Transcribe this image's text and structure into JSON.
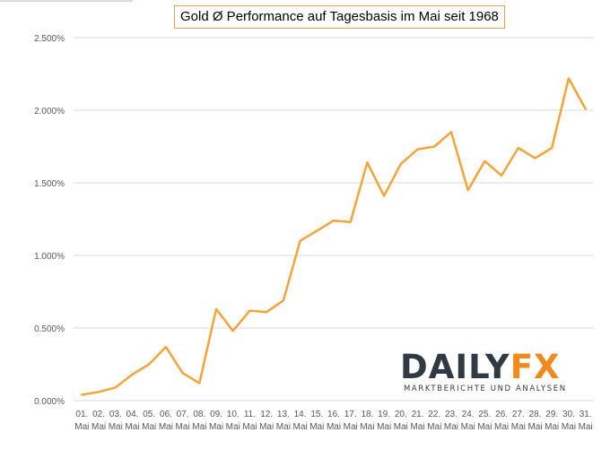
{
  "chart_data": {
    "type": "line",
    "title": "Gold Ø Performance auf Tagesbasis im Mai seit 1968",
    "xlabel": "",
    "ylabel": "",
    "categories": [
      "01. Mai",
      "02. Mai",
      "03. Mai",
      "04. Mai",
      "05. Mai",
      "06. Mai",
      "07. Mai",
      "08. Mai",
      "09. Mai",
      "10. Mai",
      "11. Mai",
      "12. Mai",
      "13. Mai",
      "14. Mai",
      "15. Mai",
      "16. Mai",
      "17. Mai",
      "18. Mai",
      "19. Mai",
      "20. Mai",
      "21. Mai",
      "22. Mai",
      "23. Mai",
      "24. Mai",
      "25. Mai",
      "26. Mai",
      "27. Mai",
      "28. Mai",
      "29. Mai",
      "30. Mai",
      "31. Mai"
    ],
    "values": [
      0.04,
      0.06,
      0.09,
      0.18,
      0.25,
      0.37,
      0.19,
      0.12,
      0.63,
      0.48,
      0.62,
      0.61,
      0.69,
      1.1,
      1.17,
      1.24,
      1.23,
      1.64,
      1.41,
      1.63,
      1.73,
      1.75,
      1.85,
      1.45,
      1.65,
      1.55,
      1.74,
      1.67,
      1.74,
      2.22,
      2.01
    ],
    "ylim": [
      0,
      2.5
    ],
    "yticks": [
      0,
      0.5,
      1.0,
      1.5,
      2.0,
      2.5
    ],
    "ytick_labels": [
      "0.000%",
      "0.500%",
      "1.000%",
      "1.500%",
      "2.000%",
      "2.500%"
    ],
    "grid": true,
    "legend": false,
    "line_color": "#f5a33a",
    "grid_color": "#d9d9d9"
  },
  "logo": {
    "daily": "DAILY",
    "fx": "FX",
    "tagline": "MARKTBERICHTE UND ANALYSEN"
  }
}
